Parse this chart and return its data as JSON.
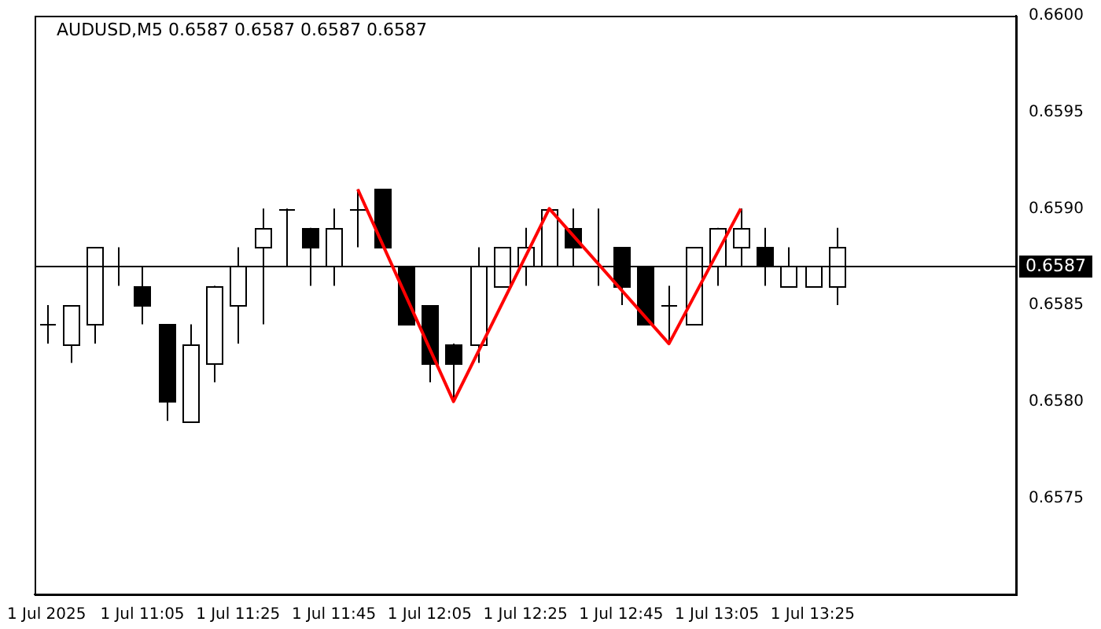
{
  "chart_data": {
    "type": "candlestick",
    "title": "AUDUSD,M5 0.6587 0.6587 0.6587 0.6587",
    "categories": [
      "1 Jul 2025",
      null,
      null,
      null,
      "1 Jul 11:05",
      null,
      null,
      null,
      "1 Jul 11:25",
      null,
      null,
      null,
      "1 Jul 11:45",
      null,
      null,
      null,
      "1 Jul 12:05",
      null,
      null,
      null,
      "1 Jul 12:25",
      null,
      null,
      null,
      "1 Jul 12:45",
      null,
      null,
      null,
      "1 Jul 13:05",
      null,
      null,
      null,
      "1 Jul 13:25",
      null,
      null,
      null,
      null,
      null,
      null,
      null,
      null
    ],
    "ohlc": [
      [
        0.6584,
        0.6585,
        0.6583,
        0.6584
      ],
      [
        0.6583,
        0.6585,
        0.6582,
        0.6585
      ],
      [
        0.6584,
        0.6588,
        0.6583,
        0.6588
      ],
      [
        0.6587,
        0.6588,
        0.6586,
        0.6587
      ],
      [
        0.6586,
        0.6587,
        0.6584,
        0.6585
      ],
      [
        0.6584,
        0.6584,
        0.6579,
        0.658
      ],
      [
        0.6579,
        0.6584,
        0.6579,
        0.6583
      ],
      [
        0.6582,
        0.6586,
        0.6581,
        0.6586
      ],
      [
        0.6585,
        0.6588,
        0.6583,
        0.6587
      ],
      [
        0.6588,
        0.659,
        0.6584,
        0.6589
      ],
      [
        0.659,
        0.659,
        0.6587,
        0.659
      ],
      [
        0.6589,
        0.6589,
        0.6586,
        0.6588
      ],
      [
        0.6587,
        0.659,
        0.6586,
        0.6589
      ],
      [
        0.659,
        0.6591,
        0.6588,
        0.659
      ],
      [
        0.6591,
        0.6591,
        0.6588,
        0.6588
      ],
      [
        0.6587,
        0.6587,
        0.6584,
        0.6584
      ],
      [
        0.6585,
        0.6585,
        0.6581,
        0.6582
      ],
      [
        0.6583,
        0.6583,
        0.658,
        0.6582
      ],
      [
        0.6583,
        0.6588,
        0.6582,
        0.6587
      ],
      [
        0.6586,
        0.6588,
        0.6586,
        0.6588
      ],
      [
        0.6587,
        0.6589,
        0.6586,
        0.6588
      ],
      [
        0.6587,
        0.659,
        0.6587,
        0.659
      ],
      [
        0.6589,
        0.659,
        0.6587,
        0.6588
      ],
      [
        0.6587,
        0.659,
        0.6586,
        0.6587
      ],
      [
        0.6588,
        0.6588,
        0.6585,
        0.6586
      ],
      [
        0.6587,
        0.6587,
        0.6584,
        0.6584
      ],
      [
        0.6585,
        0.6586,
        0.6583,
        0.6585
      ],
      [
        0.6584,
        0.6588,
        0.6584,
        0.6588
      ],
      [
        0.6587,
        0.6589,
        0.6586,
        0.6589
      ],
      [
        0.6588,
        0.659,
        0.6587,
        0.6589
      ],
      [
        0.6588,
        0.6589,
        0.6586,
        0.6587
      ],
      [
        0.6586,
        0.6588,
        0.6586,
        0.6587
      ],
      [
        0.6586,
        0.6587,
        0.6586,
        0.6587
      ],
      [
        0.6586,
        0.6589,
        0.6585,
        0.6588
      ],
      null,
      null,
      null,
      null,
      null,
      null,
      null
    ],
    "series": [
      {
        "type": "line",
        "color": "#ff0000",
        "values": [
          null,
          null,
          null,
          null,
          null,
          null,
          null,
          null,
          null,
          null,
          null,
          null,
          null,
          0.6591,
          null,
          null,
          null,
          0.658,
          null,
          null,
          null,
          0.659,
          null,
          null,
          null,
          null,
          0.6583,
          null,
          null,
          0.659,
          null,
          null,
          null,
          null,
          null,
          null,
          null,
          null,
          null,
          null,
          null
        ]
      }
    ],
    "ylim": [
      0.657,
      0.66
    ],
    "yticks": [
      0.6575,
      {
        "value": 0.658,
        "label": "0.6580"
      },
      0.6585,
      {
        "value": 0.659,
        "label": "0.6590"
      },
      0.6595,
      {
        "value": 0.66,
        "label": "0.6600"
      }
    ],
    "ref_lines": [
      {
        "axis": "y",
        "value": 0.6587,
        "label": "0.6587",
        "color": "#000000"
      }
    ],
    "grid": false,
    "legend": false
  }
}
